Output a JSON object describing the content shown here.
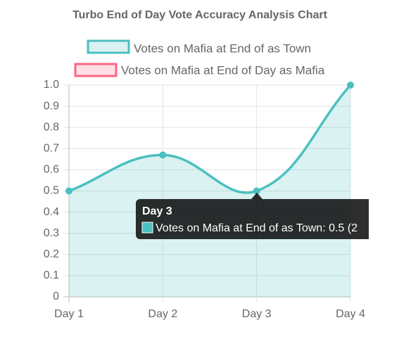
{
  "chart_data": {
    "type": "line",
    "title": "Turbo End of Day Vote Accuracy Analysis Chart",
    "categories": [
      "Day 1",
      "Day 2",
      "Day 3",
      "Day 4"
    ],
    "series": [
      {
        "name": "Votes on Mafia at End of as Town",
        "color": "#4bc0c0",
        "fill": "rgba(75,192,192,0.2)",
        "values": [
          0.5,
          0.67,
          0.5,
          1.0
        ]
      },
      {
        "name": "Votes on Mafia at End of Day as Mafia",
        "color": "#ff6384",
        "fill": "rgba(255,99,132,0.2)",
        "values": [
          null,
          null,
          null,
          null
        ]
      }
    ],
    "ylim": [
      0,
      1
    ],
    "yticks": [
      0,
      0.1,
      0.2,
      0.3,
      0.4,
      0.5,
      0.6,
      0.7,
      0.8,
      0.9,
      {
        "value": 1,
        "label": "1.0"
      }
    ],
    "grid": true,
    "tooltip": {
      "title": "Day 3",
      "label": "Votes on Mafia at End of as Town: 0.5 (2"
    }
  }
}
